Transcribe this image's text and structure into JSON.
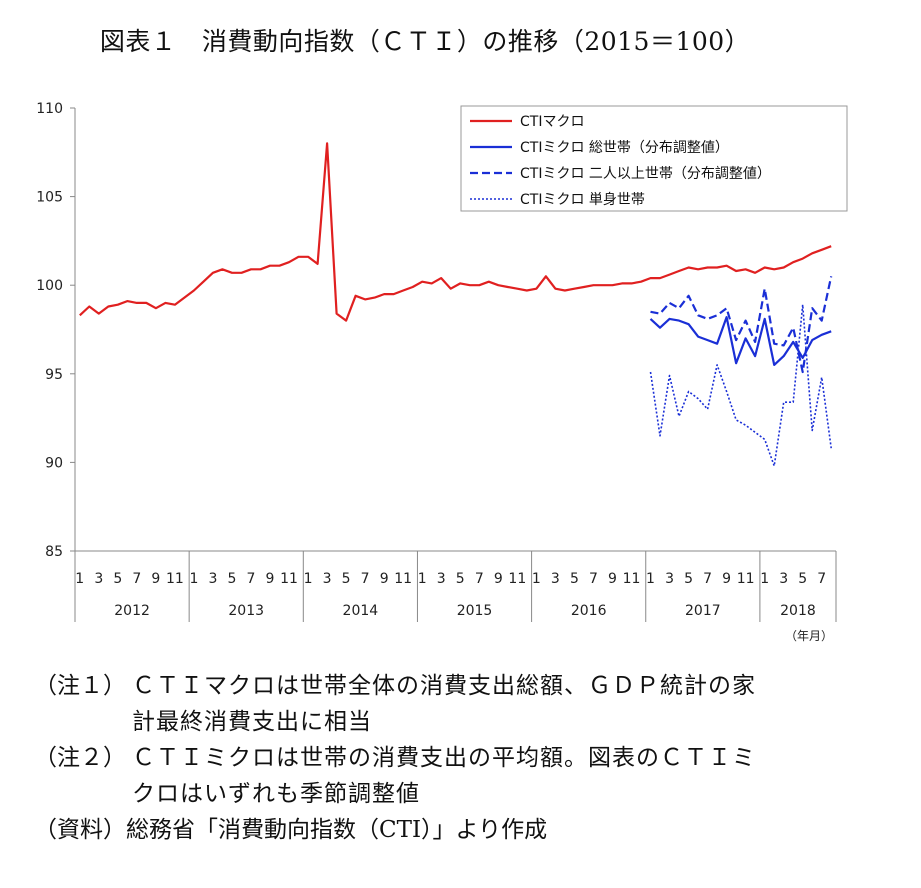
{
  "title": "図表１　消費動向指数（ＣＴＩ）の推移（2015＝100）",
  "chart_data": {
    "type": "line",
    "title": "図表１　消費動向指数（ＣＴＩ）の推移（2015＝100）",
    "ylim": [
      85,
      110
    ],
    "yticks": [
      85,
      90,
      95,
      100,
      105,
      110
    ],
    "grid": false,
    "legend_position": "top-right",
    "unit_label": "（年月）",
    "month_ticks": [
      "1",
      "3",
      "5",
      "7",
      "9",
      "11"
    ],
    "years": [
      "2012",
      "2013",
      "2014",
      "2015",
      "2016",
      "2017",
      "2018"
    ],
    "x_start": "2012-01",
    "x_end": "2018-08",
    "series": [
      {
        "name": "CTIマクロ",
        "color": "#e02020",
        "style": "solid",
        "start": "2012-01",
        "values": [
          98.3,
          98.8,
          98.4,
          98.8,
          98.9,
          99.1,
          99.0,
          99.0,
          98.7,
          99.0,
          98.9,
          99.3,
          99.7,
          100.2,
          100.7,
          100.9,
          100.7,
          100.7,
          100.9,
          100.9,
          101.1,
          101.1,
          101.3,
          101.6,
          101.6,
          101.2,
          108.0,
          98.4,
          98.0,
          99.4,
          99.2,
          99.3,
          99.5,
          99.5,
          99.7,
          99.9,
          100.2,
          100.1,
          100.4,
          99.8,
          100.1,
          100.0,
          100.0,
          100.2,
          100.0,
          99.9,
          99.8,
          99.7,
          99.8,
          100.5,
          99.8,
          99.7,
          99.8,
          99.9,
          100.0,
          100.0,
          100.0,
          100.1,
          100.1,
          100.2,
          100.4,
          100.4,
          100.6,
          100.8,
          101.0,
          100.9,
          101.0,
          101.0,
          101.1,
          100.8,
          100.9,
          100.7,
          101.0,
          100.9,
          101.0,
          101.3,
          101.5,
          101.8,
          102.0,
          102.2
        ]
      },
      {
        "name": "CTIミクロ 総世帯（分布調整値）",
        "color": "#1a2fd6",
        "style": "solid",
        "start": "2017-01",
        "values": [
          98.1,
          97.6,
          98.1,
          98.0,
          97.8,
          97.1,
          96.9,
          96.7,
          98.2,
          95.6,
          97.0,
          96.0,
          98.1,
          95.5,
          96.0,
          96.8,
          95.9,
          96.9,
          97.2,
          97.4
        ]
      },
      {
        "name": "CTIミクロ 二人以上世帯（分布調整値）",
        "color": "#1a2fd6",
        "style": "dashed",
        "start": "2017-01",
        "values": [
          98.5,
          98.4,
          99.0,
          98.7,
          99.4,
          98.3,
          98.1,
          98.3,
          98.7,
          96.9,
          98.0,
          96.8,
          99.8,
          96.7,
          96.6,
          97.6,
          95.1,
          98.7,
          98.0,
          100.5
        ]
      },
      {
        "name": "CTIミクロ 単身世帯",
        "color": "#1a2fd6",
        "style": "dotted",
        "start": "2017-01",
        "values": [
          95.1,
          91.5,
          94.9,
          92.6,
          94.0,
          93.6,
          93.0,
          95.5,
          94.0,
          92.4,
          92.1,
          91.7,
          91.3,
          89.8,
          93.4,
          93.4,
          98.9,
          91.8,
          94.8,
          90.8
        ]
      }
    ]
  },
  "notes": [
    {
      "tag": "（注１）",
      "line1": "ＣＴＩマクロは世帯全体の消費支出総額、ＧＤＰ統計の家",
      "line2": "計最終消費支出に相当"
    },
    {
      "tag": "（注２）",
      "line1": "ＣＴＩミクロは世帯の消費支出の平均額。図表のＣＴＩミ",
      "line2": "クロはいずれも季節調整値"
    }
  ],
  "source": "（資料）総務省「消費動向指数（CTI）」より作成"
}
